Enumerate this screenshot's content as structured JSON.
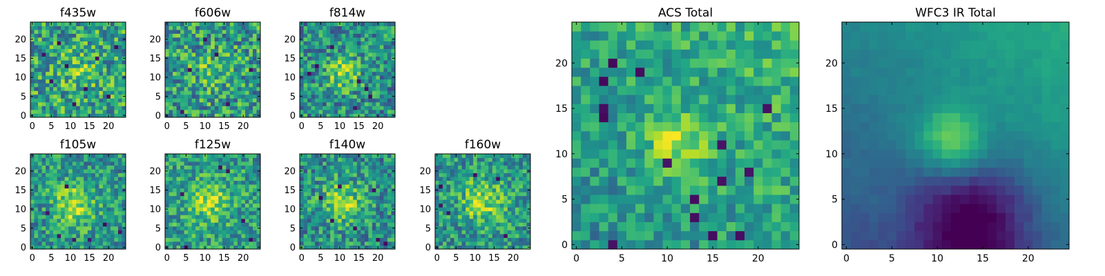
{
  "chart_data": [
    {
      "type": "heatmap",
      "title": "f435w",
      "x_ticks": [
        "0",
        "5",
        "10",
        "15",
        "20"
      ],
      "y_ticks": [
        "0",
        "5",
        "10",
        "15",
        "20"
      ],
      "xlim": [
        -0.5,
        24.5
      ],
      "ylim": [
        -0.5,
        24.5
      ],
      "grid_size": [
        25,
        25
      ],
      "colormap": "viridis",
      "seed": 11,
      "blob": {
        "cx": 12,
        "cy": 12,
        "sigma": 3.5,
        "amp": 0.18
      },
      "noise": 0.5,
      "base": 0.58,
      "dips": [
        [
          3,
          16
        ],
        [
          9,
          13
        ],
        [
          14,
          7
        ],
        [
          17,
          15
        ],
        [
          20,
          5
        ],
        [
          5,
          9
        ],
        [
          11,
          3
        ],
        [
          22,
          18
        ],
        [
          7,
          19
        ]
      ]
    },
    {
      "type": "heatmap",
      "title": "f606w",
      "x_ticks": [
        "0",
        "5",
        "10",
        "15",
        "20"
      ],
      "y_ticks": [
        "0",
        "5",
        "10",
        "15",
        "20"
      ],
      "xlim": [
        -0.5,
        24.5
      ],
      "ylim": [
        -0.5,
        24.5
      ],
      "grid_size": [
        25,
        25
      ],
      "colormap": "viridis",
      "seed": 23,
      "blob": {
        "cx": 12,
        "cy": 12,
        "sigma": 3.5,
        "amp": 0.15
      },
      "noise": 0.5,
      "base": 0.55,
      "dips": [
        [
          4,
          1
        ],
        [
          10,
          20
        ],
        [
          16,
          3
        ],
        [
          22,
          12
        ],
        [
          6,
          12
        ],
        [
          13,
          16
        ]
      ]
    },
    {
      "type": "heatmap",
      "title": "f814w",
      "x_ticks": [
        "0",
        "5",
        "10",
        "15",
        "20"
      ],
      "y_ticks": [
        "0",
        "5",
        "10",
        "15",
        "20"
      ],
      "xlim": [
        -0.5,
        24.5
      ],
      "ylim": [
        -0.5,
        24.5
      ],
      "grid_size": [
        25,
        25
      ],
      "colormap": "viridis",
      "seed": 37,
      "blob": {
        "cx": 11,
        "cy": 11,
        "sigma": 3.0,
        "amp": 0.35
      },
      "noise": 0.45,
      "base": 0.5,
      "dips": [
        [
          2,
          11
        ],
        [
          4,
          13
        ],
        [
          15,
          9
        ],
        [
          17,
          7
        ],
        [
          14,
          2
        ],
        [
          18,
          5
        ],
        [
          8,
          18
        ]
      ]
    },
    {
      "type": "heatmap",
      "title": "f105w",
      "x_ticks": [
        "0",
        "5",
        "10",
        "15",
        "20"
      ],
      "y_ticks": [
        "0",
        "5",
        "10",
        "15",
        "20"
      ],
      "xlim": [
        -0.5,
        24.5
      ],
      "ylim": [
        -0.5,
        24.5
      ],
      "grid_size": [
        25,
        25
      ],
      "colormap": "viridis",
      "seed": 41,
      "blob": {
        "cx": 11,
        "cy": 11,
        "sigma": 4.0,
        "amp": 0.35
      },
      "noise": 0.4,
      "base": 0.52,
      "dips": [
        [
          9,
          16
        ],
        [
          7,
          3
        ],
        [
          15,
          2
        ],
        [
          19,
          6
        ],
        [
          23,
          4
        ],
        [
          4,
          9
        ],
        [
          11,
          2
        ]
      ]
    },
    {
      "type": "heatmap",
      "title": "f125w",
      "x_ticks": [
        "0",
        "5",
        "10",
        "15",
        "20"
      ],
      "y_ticks": [
        "0",
        "5",
        "10",
        "15",
        "20"
      ],
      "xlim": [
        -0.5,
        24.5
      ],
      "ylim": [
        -0.5,
        24.5
      ],
      "grid_size": [
        25,
        25
      ],
      "colormap": "viridis",
      "seed": 53,
      "blob": {
        "cx": 11,
        "cy": 12,
        "sigma": 4.0,
        "amp": 0.3
      },
      "noise": 0.4,
      "base": 0.55,
      "dips": [
        [
          5,
          0
        ],
        [
          14,
          21
        ],
        [
          16,
          20
        ],
        [
          22,
          2
        ],
        [
          4,
          14
        ],
        [
          20,
          7
        ]
      ]
    },
    {
      "type": "heatmap",
      "title": "f140w",
      "x_ticks": [
        "0",
        "5",
        "10",
        "15",
        "20"
      ],
      "y_ticks": [
        "0",
        "5",
        "10",
        "15",
        "20"
      ],
      "xlim": [
        -0.5,
        24.5
      ],
      "ylim": [
        -0.5,
        24.5
      ],
      "grid_size": [
        25,
        25
      ],
      "colormap": "viridis",
      "seed": 67,
      "blob": {
        "cx": 11,
        "cy": 12,
        "sigma": 4.0,
        "amp": 0.3
      },
      "noise": 0.42,
      "base": 0.5,
      "dips": [
        [
          10,
          16
        ],
        [
          5,
          13
        ],
        [
          19,
          15
        ],
        [
          20,
          2
        ],
        [
          22,
          1
        ],
        [
          14,
          5
        ],
        [
          8,
          7
        ]
      ]
    },
    {
      "type": "heatmap",
      "title": "f160w",
      "x_ticks": [
        "0",
        "5",
        "10",
        "15",
        "20"
      ],
      "y_ticks": [
        "0",
        "5",
        "10",
        "15",
        "20"
      ],
      "xlim": [
        -0.5,
        24.5
      ],
      "ylim": [
        -0.5,
        24.5
      ],
      "grid_size": [
        25,
        25
      ],
      "colormap": "viridis",
      "seed": 79,
      "blob": {
        "cx": 12,
        "cy": 12,
        "sigma": 4.0,
        "amp": 0.35
      },
      "noise": 0.4,
      "base": 0.52,
      "dips": [
        [
          1,
          16
        ],
        [
          1,
          11
        ],
        [
          3,
          9
        ],
        [
          18,
          3
        ],
        [
          16,
          18
        ],
        [
          10,
          19
        ]
      ]
    },
    {
      "type": "heatmap",
      "title": "ACS Total",
      "x_ticks": [
        "0",
        "5",
        "10",
        "15",
        "20"
      ],
      "y_ticks": [
        "0",
        "5",
        "10",
        "15",
        "20"
      ],
      "xlim": [
        -0.5,
        24.5
      ],
      "ylim": [
        -0.5,
        24.5
      ],
      "grid_size": [
        25,
        25
      ],
      "colormap": "viridis",
      "seed": 97,
      "blob": {
        "cx": 11,
        "cy": 11,
        "sigma": 2.5,
        "amp": 0.3
      },
      "noise": 0.3,
      "base": 0.58,
      "gradient": 0.18,
      "dips": [
        [
          3,
          15
        ],
        [
          3,
          14
        ],
        [
          4,
          20
        ],
        [
          7,
          19
        ],
        [
          10,
          9
        ],
        [
          13,
          5
        ],
        [
          13,
          3
        ],
        [
          16,
          7
        ],
        [
          16,
          11
        ],
        [
          18,
          1
        ],
        [
          21,
          15
        ],
        [
          19,
          8
        ],
        [
          4,
          0
        ],
        [
          15,
          1
        ],
        [
          3,
          18
        ]
      ]
    },
    {
      "type": "heatmap",
      "title": "WFC3 IR Total",
      "x_ticks": [
        "0",
        "5",
        "10",
        "15",
        "20"
      ],
      "y_ticks": [
        "0",
        "5",
        "10",
        "15",
        "20"
      ],
      "xlim": [
        -0.5,
        24.5
      ],
      "ylim": [
        -0.5,
        24.5
      ],
      "grid_size": [
        25,
        25
      ],
      "colormap": "viridis",
      "seed": 131,
      "blob": {
        "cx": 11.5,
        "cy": 11.5,
        "sigma": 2.3,
        "amp": 0.45
      },
      "noise": 0.08,
      "base": 0.45,
      "gradient": 0.35,
      "smooth": true,
      "darkzone": {
        "cx": 14,
        "cy": 2,
        "sigma": 5.0,
        "amp": 0.45
      }
    }
  ]
}
